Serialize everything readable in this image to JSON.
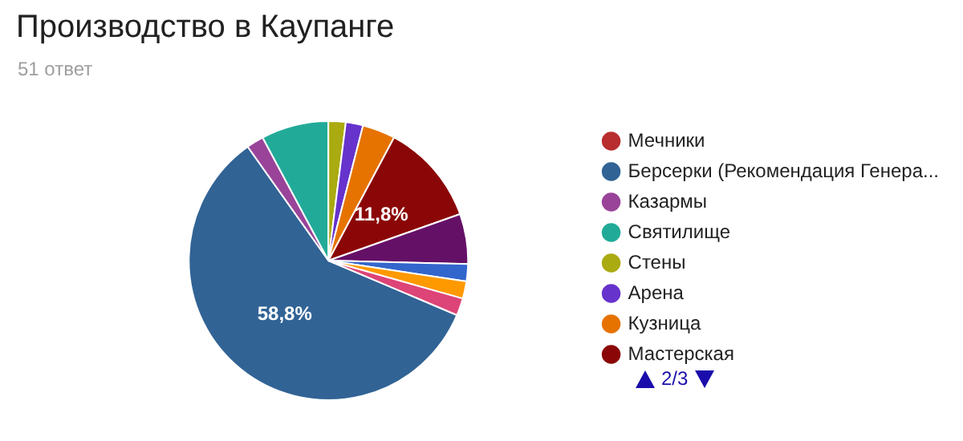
{
  "chart_data": {
    "type": "pie",
    "title": "Производство в Каупанге",
    "subtitle": "51 ответ",
    "categories": [
      "Мечники",
      "Берсерки (Рекомендация Генера...",
      "Казармы",
      "Святилище",
      "Стены",
      "Арена",
      "Кузница",
      "Мастерская",
      null,
      null,
      null,
      null
    ],
    "values": [
      0,
      58.8,
      2,
      7.8,
      2,
      2,
      3.8,
      11.8,
      5.8,
      2,
      2,
      2
    ],
    "colors": [
      "#b82e2e",
      "#316395",
      "#994499",
      "#22aa99",
      "#aaaa11",
      "#6633cc",
      "#e67300",
      "#8b0707",
      "#651067",
      "#3366cc",
      "#ff9900",
      "#dd4477"
    ],
    "value_labels": [
      null,
      "58,8%",
      null,
      null,
      null,
      null,
      null,
      "11,8%",
      null,
      null,
      null,
      null
    ],
    "legend": "right",
    "annotations": [
      "2/3"
    ]
  }
}
